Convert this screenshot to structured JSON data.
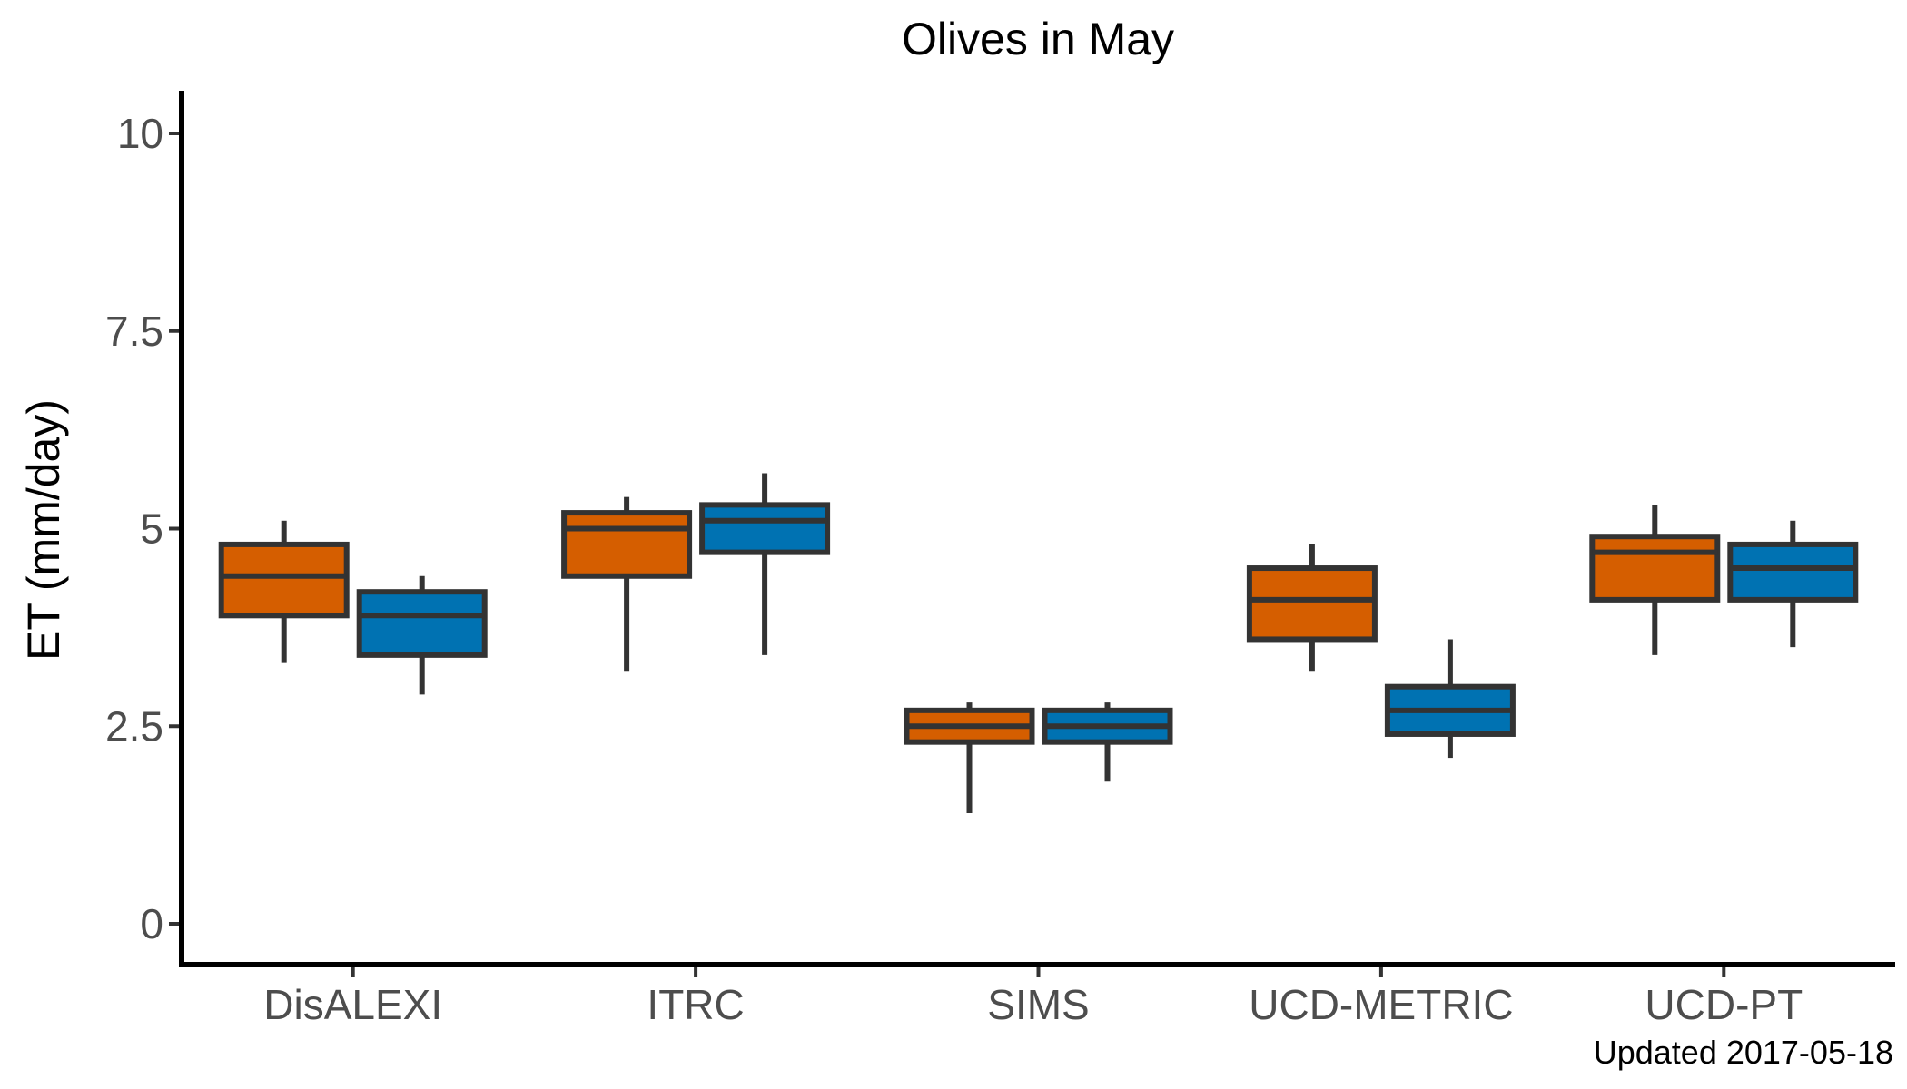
{
  "chart_data": {
    "type": "boxplot",
    "title": "Olives in May",
    "xlabel": "",
    "ylabel": "ET (mm/day)",
    "ylim": [
      -0.5,
      10.5
    ],
    "yticks": [
      0,
      2.5,
      5,
      7.5,
      10
    ],
    "ytick_labels": [
      "0",
      "2.5",
      "5",
      "7.5",
      "10"
    ],
    "categories": [
      "DisALEXI",
      "ITRC",
      "SIMS",
      "UCD-METRIC",
      "UCD-PT"
    ],
    "grid": false,
    "legend": "none",
    "series_colors": [
      "#D55E00",
      "#0072B2"
    ],
    "series": [
      {
        "boxes": [
          {
            "min": 3.3,
            "q1": 3.9,
            "median": 4.4,
            "q3": 4.8,
            "max": 5.1
          },
          {
            "min": 3.2,
            "q1": 4.4,
            "median": 5.0,
            "q3": 5.2,
            "max": 5.4
          },
          {
            "min": 1.4,
            "q1": 2.3,
            "median": 2.5,
            "q3": 2.7,
            "max": 2.8
          },
          {
            "min": 3.2,
            "q1": 3.6,
            "median": 4.1,
            "q3": 4.5,
            "max": 4.8
          },
          {
            "min": 3.4,
            "q1": 4.1,
            "median": 4.7,
            "q3": 4.9,
            "max": 5.3
          }
        ]
      },
      {
        "boxes": [
          {
            "min": 2.9,
            "q1": 3.4,
            "median": 3.9,
            "q3": 4.2,
            "max": 4.4
          },
          {
            "min": 3.4,
            "q1": 4.7,
            "median": 5.1,
            "q3": 5.3,
            "max": 5.7
          },
          {
            "min": 1.8,
            "q1": 2.3,
            "median": 2.5,
            "q3": 2.7,
            "max": 2.8
          },
          {
            "min": 2.1,
            "q1": 2.4,
            "median": 2.7,
            "q3": 3.0,
            "max": 3.6
          },
          {
            "min": 3.5,
            "q1": 4.1,
            "median": 4.5,
            "q3": 4.8,
            "max": 5.1
          }
        ]
      }
    ]
  },
  "footer": {
    "note": "Updated  2017-05-18"
  }
}
